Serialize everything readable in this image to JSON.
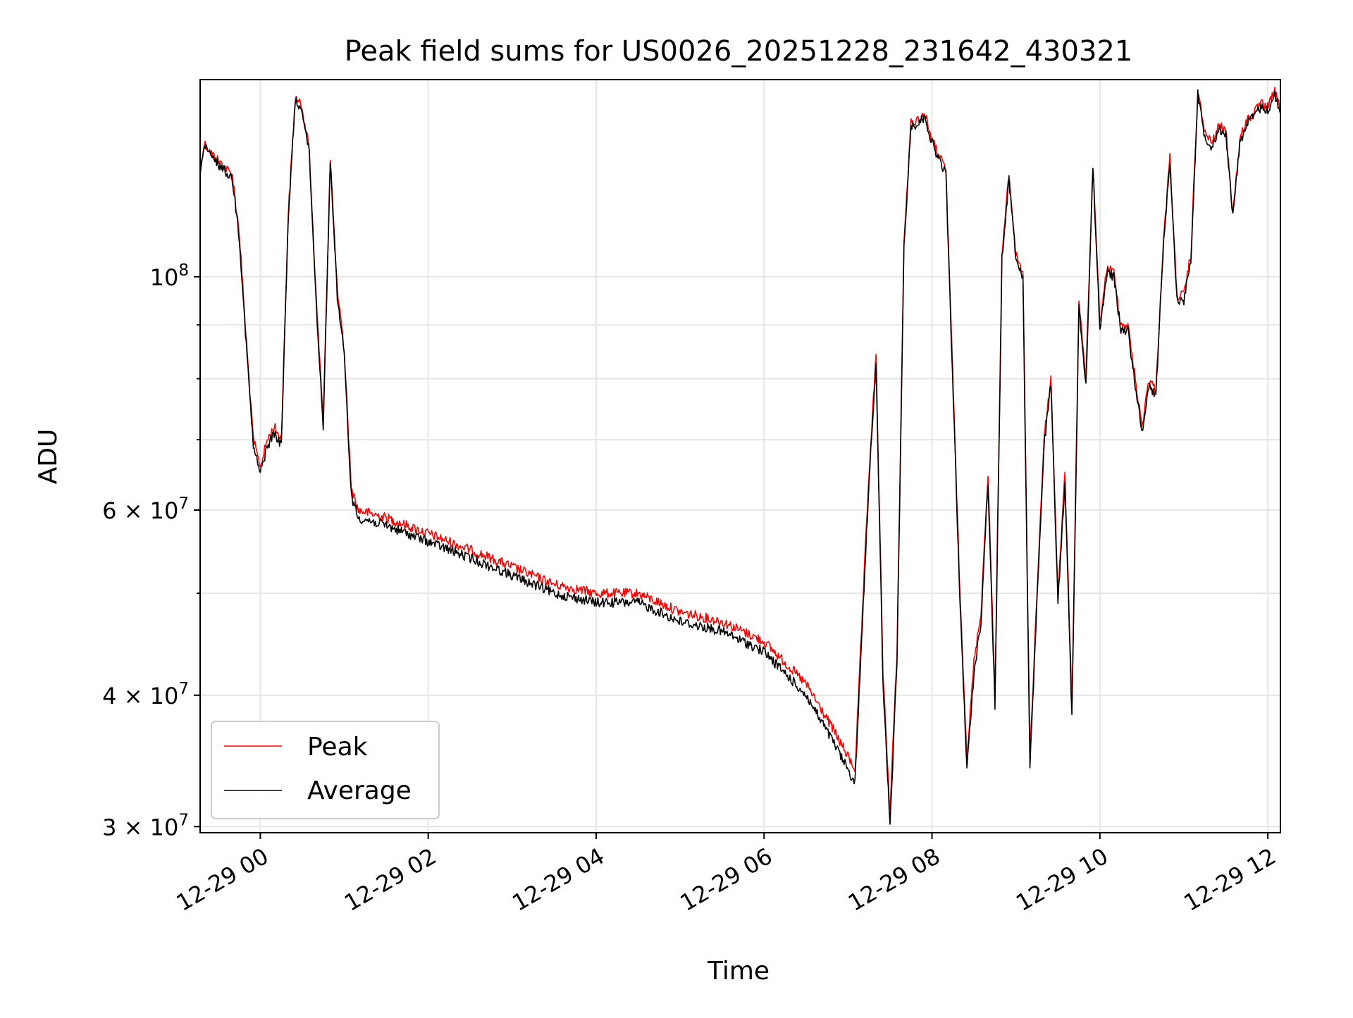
{
  "chart_data": {
    "type": "line",
    "title": "Peak field sums for US0026_20251228_231642_430321",
    "xlabel": "Time",
    "ylabel": "ADU",
    "y_scale": "log",
    "ylim": [
      29600000,
      154000000
    ],
    "xlim": [
      "12-28 23:17",
      "12-29 12:09"
    ],
    "x_ticks": [
      "12-29 00",
      "12-29 02",
      "12-29 04",
      "12-29 06",
      "12-29 08",
      "12-29 10",
      "12-29 12"
    ],
    "y_ticks": [
      {
        "value": 30000000,
        "mantissa": "3",
        "exp": "7"
      },
      {
        "value": 40000000,
        "mantissa": "4",
        "exp": "7"
      },
      {
        "value": 60000000,
        "mantissa": "6",
        "exp": "7"
      },
      {
        "value": 100000000,
        "mantissa": "",
        "exp": "8"
      }
    ],
    "grid": true,
    "legend_position": "lower-left",
    "colors": {
      "peak": "#ff0000",
      "average": "#000000",
      "grid": "#e6e6e6"
    },
    "series": [
      {
        "name": "Peak",
        "x": [
          "12-28 23:17",
          "12-28 23:20",
          "12-28 23:25",
          "12-28 23:30",
          "12-28 23:35",
          "12-28 23:40",
          "12-28 23:45",
          "12-28 23:50",
          "12-28 23:55",
          "12-29 00:00",
          "12-29 00:05",
          "12-29 00:10",
          "12-29 00:15",
          "12-29 00:20",
          "12-29 00:25",
          "12-29 00:30",
          "12-29 00:35",
          "12-29 00:40",
          "12-29 00:45",
          "12-29 00:50",
          "12-29 00:55",
          "12-29 01:00",
          "12-29 01:05",
          "12-29 01:10",
          "12-29 01:30",
          "12-29 02:00",
          "12-29 02:30",
          "12-29 03:00",
          "12-29 03:30",
          "12-29 04:00",
          "12-29 04:30",
          "12-29 05:00",
          "12-29 05:30",
          "12-29 06:00",
          "12-29 06:30",
          "12-29 06:50",
          "12-29 07:05",
          "12-29 07:15",
          "12-29 07:20",
          "12-29 07:25",
          "12-29 07:30",
          "12-29 07:35",
          "12-29 07:40",
          "12-29 07:45",
          "12-29 07:50",
          "12-29 07:55",
          "12-29 08:00",
          "12-29 08:10",
          "12-29 08:20",
          "12-29 08:25",
          "12-29 08:30",
          "12-29 08:35",
          "12-29 08:40",
          "12-29 08:45",
          "12-29 08:50",
          "12-29 08:55",
          "12-29 09:00",
          "12-29 09:05",
          "12-29 09:10",
          "12-29 09:15",
          "12-29 09:20",
          "12-29 09:25",
          "12-29 09:30",
          "12-29 09:35",
          "12-29 09:40",
          "12-29 09:45",
          "12-29 09:50",
          "12-29 09:55",
          "12-29 10:00",
          "12-29 10:05",
          "12-29 10:10",
          "12-29 10:15",
          "12-29 10:20",
          "12-29 10:30",
          "12-29 10:35",
          "12-29 10:40",
          "12-29 10:45",
          "12-29 10:50",
          "12-29 10:55",
          "12-29 11:00",
          "12-29 11:05",
          "12-29 11:10",
          "12-29 11:15",
          "12-29 11:20",
          "12-29 11:25",
          "12-29 11:30",
          "12-29 11:35",
          "12-29 11:40",
          "12-29 11:45",
          "12-29 11:50",
          "12-29 11:55",
          "12-29 12:00",
          "12-29 12:05",
          "12-29 12:09"
        ],
        "values": [
          127000000,
          134000000,
          131000000,
          129000000,
          127000000,
          125000000,
          110000000,
          87000000,
          70000000,
          66000000,
          70000000,
          72000000,
          70000000,
          115000000,
          148000000,
          145000000,
          132000000,
          95000000,
          73000000,
          130000000,
          97000000,
          85000000,
          63000000,
          60000000,
          59000000,
          57000000,
          55000000,
          53000000,
          51000000,
          50000000,
          50000000,
          48000000,
          47000000,
          45000000,
          41000000,
          37000000,
          34000000,
          65000000,
          84000000,
          42000000,
          31000000,
          44000000,
          108000000,
          140000000,
          141000000,
          143000000,
          135000000,
          126000000,
          50000000,
          35000000,
          43000000,
          48000000,
          65000000,
          40000000,
          105000000,
          125000000,
          105000000,
          101000000,
          35000000,
          50000000,
          70000000,
          80000000,
          50000000,
          65000000,
          39000000,
          95000000,
          80000000,
          128000000,
          90000000,
          102000000,
          101000000,
          90000000,
          90000000,
          72000000,
          80000000,
          78000000,
          106000000,
          130000000,
          96000000,
          96000000,
          105000000,
          150000000,
          137000000,
          134000000,
          139000000,
          138000000,
          115000000,
          135000000,
          141000000,
          143000000,
          146000000,
          145000000,
          150000000,
          144000000
        ]
      },
      {
        "name": "Average",
        "x": [
          "12-28 23:17",
          "12-28 23:20",
          "12-28 23:25",
          "12-28 23:30",
          "12-28 23:35",
          "12-28 23:40",
          "12-28 23:45",
          "12-28 23:50",
          "12-28 23:55",
          "12-29 00:00",
          "12-29 00:05",
          "12-29 00:10",
          "12-29 00:15",
          "12-29 00:20",
          "12-29 00:25",
          "12-29 00:30",
          "12-29 00:35",
          "12-29 00:40",
          "12-29 00:45",
          "12-29 00:50",
          "12-29 00:55",
          "12-29 01:00",
          "12-29 01:05",
          "12-29 01:10",
          "12-29 01:30",
          "12-29 02:00",
          "12-29 02:30",
          "12-29 03:00",
          "12-29 03:30",
          "12-29 04:00",
          "12-29 04:30",
          "12-29 05:00",
          "12-29 05:30",
          "12-29 06:00",
          "12-29 06:30",
          "12-29 06:50",
          "12-29 07:05",
          "12-29 07:15",
          "12-29 07:20",
          "12-29 07:25",
          "12-29 07:30",
          "12-29 07:35",
          "12-29 07:40",
          "12-29 07:45",
          "12-29 07:50",
          "12-29 07:55",
          "12-29 08:00",
          "12-29 08:10",
          "12-29 08:20",
          "12-29 08:25",
          "12-29 08:30",
          "12-29 08:35",
          "12-29 08:40",
          "12-29 08:45",
          "12-29 08:50",
          "12-29 08:55",
          "12-29 09:00",
          "12-29 09:05",
          "12-29 09:10",
          "12-29 09:15",
          "12-29 09:20",
          "12-29 09:25",
          "12-29 09:30",
          "12-29 09:35",
          "12-29 09:40",
          "12-29 09:45",
          "12-29 09:50",
          "12-29 09:55",
          "12-29 10:00",
          "12-29 10:05",
          "12-29 10:10",
          "12-29 10:15",
          "12-29 10:20",
          "12-29 10:30",
          "12-29 10:35",
          "12-29 10:40",
          "12-29 10:45",
          "12-29 10:50",
          "12-29 10:55",
          "12-29 11:00",
          "12-29 11:05",
          "12-29 11:10",
          "12-29 11:15",
          "12-29 11:20",
          "12-29 11:25",
          "12-29 11:30",
          "12-29 11:35",
          "12-29 11:40",
          "12-29 11:45",
          "12-29 11:50",
          "12-29 11:55",
          "12-29 12:00",
          "12-29 12:05",
          "12-29 12:09"
        ],
        "values": [
          126000000,
          133000000,
          130000000,
          128000000,
          126000000,
          124000000,
          109000000,
          86000000,
          69000000,
          65000000,
          69000000,
          71000000,
          69000000,
          114000000,
          147000000,
          144000000,
          131000000,
          94000000,
          72000000,
          129000000,
          96000000,
          84000000,
          62000000,
          59000000,
          58000000,
          56000000,
          54000000,
          52000000,
          50000000,
          49000000,
          49000000,
          47000000,
          46000000,
          44000000,
          40000000,
          36000000,
          33000000,
          64000000,
          83000000,
          41000000,
          30000000,
          43000000,
          107000000,
          139000000,
          140000000,
          142000000,
          134000000,
          125000000,
          49000000,
          34000000,
          42000000,
          47000000,
          64000000,
          39000000,
          104000000,
          124000000,
          104000000,
          100000000,
          34000000,
          49000000,
          69000000,
          79000000,
          49000000,
          64000000,
          38000000,
          94000000,
          79000000,
          127000000,
          89000000,
          101000000,
          100000000,
          89000000,
          89000000,
          71000000,
          79000000,
          77000000,
          105000000,
          129000000,
          95000000,
          95000000,
          104000000,
          149000000,
          136000000,
          133000000,
          138000000,
          137000000,
          114000000,
          134000000,
          140000000,
          142000000,
          145000000,
          144000000,
          149000000,
          143000000
        ]
      }
    ]
  }
}
